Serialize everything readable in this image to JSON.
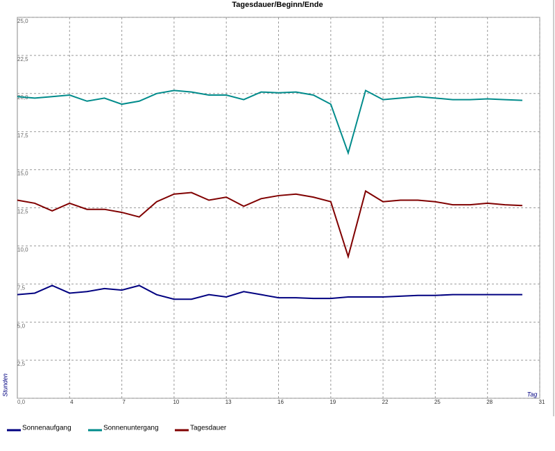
{
  "chart_data": {
    "type": "line",
    "title": "Tagesdauer/Beginn/Ende",
    "x_label": "Tag",
    "y_label": "Stunden",
    "x": [
      1,
      2,
      3,
      4,
      5,
      6,
      7,
      8,
      9,
      10,
      11,
      12,
      13,
      14,
      15,
      16,
      17,
      18,
      19,
      20,
      21,
      22,
      23,
      24,
      25,
      26,
      27,
      28,
      29,
      30
    ],
    "series": [
      {
        "name": "Sonnenaufgang",
        "color": "#000080",
        "values": [
          6.8,
          6.9,
          7.4,
          6.9,
          7.0,
          7.2,
          7.1,
          7.4,
          6.8,
          6.5,
          6.5,
          6.8,
          6.65,
          7.0,
          6.8,
          6.6,
          6.6,
          6.55,
          6.55,
          6.65,
          6.65,
          6.65,
          6.7,
          6.75,
          6.75,
          6.8,
          6.8,
          6.8,
          6.8,
          6.8
        ]
      },
      {
        "name": "Sonnenuntergang",
        "color": "#008b8b",
        "values": [
          19.8,
          19.7,
          19.8,
          19.9,
          19.5,
          19.7,
          19.3,
          19.5,
          20.0,
          20.2,
          20.1,
          19.9,
          19.9,
          19.6,
          20.1,
          20.05,
          20.1,
          19.9,
          19.3,
          16.1,
          20.2,
          19.6,
          19.7,
          19.8,
          19.7,
          19.6,
          19.6,
          19.65,
          19.6,
          19.55
        ]
      },
      {
        "name": "Tagesdauer",
        "color": "#800000",
        "values": [
          13.0,
          12.8,
          12.3,
          12.8,
          12.4,
          12.4,
          12.2,
          11.9,
          12.9,
          13.4,
          13.5,
          13.0,
          13.2,
          12.6,
          13.1,
          13.3,
          13.4,
          13.2,
          12.9,
          9.3,
          13.6,
          12.9,
          13.0,
          13.0,
          12.9,
          12.7,
          12.7,
          12.8,
          12.7,
          12.65
        ]
      }
    ],
    "xlim": [
      1,
      31
    ],
    "xticks": [
      4,
      7,
      10,
      13,
      16,
      19,
      22,
      25,
      28,
      31
    ],
    "ylim": [
      0,
      25
    ],
    "yticks": [
      {
        "value": 0,
        "label": "0,0"
      },
      {
        "value": 2.5,
        "label": "2,5"
      },
      {
        "value": 5,
        "label": "5,0"
      },
      {
        "value": 7.5,
        "label": "7,5"
      },
      {
        "value": 10,
        "label": "10,0"
      },
      {
        "value": 12.5,
        "label": "12,5"
      },
      {
        "value": 15,
        "label": "15,0"
      },
      {
        "value": 17.5,
        "label": "17,5"
      },
      {
        "value": 20,
        "label": "20,0"
      },
      {
        "value": 22.5,
        "label": "22,5"
      },
      {
        "value": 25,
        "label": "25,0"
      }
    ],
    "grid": true
  }
}
